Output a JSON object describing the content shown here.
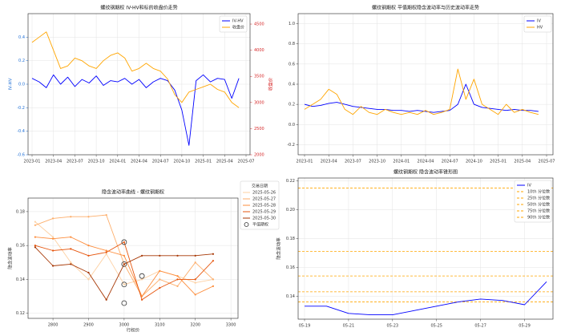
{
  "chart_data": [
    {
      "type": "line",
      "title": "螺纹钢期权 IV-HV和标的收盘价走势",
      "xlabel": "",
      "ylabel": "IV-HV",
      "y2label": "收盘价",
      "ylim": [
        -0.6,
        0.6
      ],
      "y2lim": [
        2000,
        4700
      ],
      "yticks": [
        "-0.6",
        "-0.4",
        "-0.2",
        "0.0",
        "0.2",
        "0.4"
      ],
      "y2ticks": [
        "2000",
        "2500",
        "3000",
        "3500",
        "4000",
        "4500"
      ],
      "xticks": [
        "2023-01",
        "2023-04",
        "2023-07",
        "2023-10",
        "2024-01",
        "2024-04",
        "2024-07",
        "2024-10",
        "2025-01",
        "2025-04",
        "2025-07"
      ],
      "grid": true,
      "legend": "top-right",
      "series": [
        {
          "name": "IV-HV",
          "axis": "left",
          "color": "#0000ff",
          "x": [
            "2023-01",
            "2023-02",
            "2023-03",
            "2023-04",
            "2023-05",
            "2023-06",
            "2023-07",
            "2023-08",
            "2023-09",
            "2023-10",
            "2023-11",
            "2023-12",
            "2024-01",
            "2024-02",
            "2024-03",
            "2024-04",
            "2024-05",
            "2024-06",
            "2024-07",
            "2024-08",
            "2024-09",
            "2024-10",
            "2024-11",
            "2024-12",
            "2025-01",
            "2025-02",
            "2025-03",
            "2025-04",
            "2025-05",
            "2025-06"
          ],
          "values": [
            0.05,
            0.02,
            -0.03,
            0.08,
            0.0,
            0.06,
            -0.02,
            0.04,
            0.01,
            0.07,
            -0.01,
            0.03,
            0.02,
            0.05,
            0.0,
            0.04,
            -0.03,
            0.02,
            0.05,
            0.03,
            -0.05,
            -0.22,
            -0.52,
            0.03,
            0.08,
            0.02,
            0.05,
            0.04,
            -0.12,
            0.05
          ]
        },
        {
          "name": "收盘价",
          "axis": "right",
          "color": "#ffa500",
          "x": [
            "2023-01",
            "2023-02",
            "2023-03",
            "2023-04",
            "2023-05",
            "2023-06",
            "2023-07",
            "2023-08",
            "2023-09",
            "2023-10",
            "2023-11",
            "2023-12",
            "2024-01",
            "2024-02",
            "2024-03",
            "2024-04",
            "2024-05",
            "2024-06",
            "2024-07",
            "2024-08",
            "2024-09",
            "2024-10",
            "2024-11",
            "2024-12",
            "2025-01",
            "2025-02",
            "2025-03",
            "2025-04",
            "2025-05",
            "2025-06"
          ],
          "values": [
            4150,
            4250,
            4350,
            4000,
            3650,
            3700,
            3850,
            3800,
            3700,
            3650,
            3800,
            3900,
            3950,
            3850,
            3600,
            3650,
            3750,
            3650,
            3600,
            3450,
            3150,
            3000,
            3200,
            3250,
            3300,
            3350,
            3250,
            3200,
            3000,
            2900
          ]
        }
      ]
    },
    {
      "type": "line",
      "title": "螺纹钢期权 平值期权隐含波动率与历史波动率走势",
      "xlabel": "",
      "ylabel": "",
      "ylim": [
        -0.3,
        1.1
      ],
      "yticks": [
        "-0.2",
        "0.0",
        "0.2",
        "0.4",
        "0.6",
        "0.8",
        "1.0"
      ],
      "xticks": [
        "2023-01",
        "2023-04",
        "2023-07",
        "2023-10",
        "2024-01",
        "2024-04",
        "2024-07",
        "2024-10",
        "2025-01",
        "2025-04",
        "2025-07"
      ],
      "grid": true,
      "legend": "top-right",
      "series": [
        {
          "name": "IV",
          "color": "#0000ff",
          "x": [
            "2023-01",
            "2023-02",
            "2023-03",
            "2023-04",
            "2023-05",
            "2023-06",
            "2023-07",
            "2023-08",
            "2023-09",
            "2023-10",
            "2023-11",
            "2023-12",
            "2024-01",
            "2024-02",
            "2024-03",
            "2024-04",
            "2024-05",
            "2024-06",
            "2024-07",
            "2024-08",
            "2024-09",
            "2024-10",
            "2024-11",
            "2024-12",
            "2025-01",
            "2025-02",
            "2025-03",
            "2025-04",
            "2025-05",
            "2025-06"
          ],
          "values": [
            0.2,
            0.18,
            0.19,
            0.21,
            0.22,
            0.2,
            0.18,
            0.17,
            0.16,
            0.15,
            0.15,
            0.14,
            0.14,
            0.13,
            0.14,
            0.13,
            0.12,
            0.13,
            0.14,
            0.2,
            0.4,
            0.2,
            0.17,
            0.16,
            0.15,
            0.14,
            0.15,
            0.14,
            0.14,
            0.13
          ]
        },
        {
          "name": "HV",
          "color": "#ffa500",
          "x": [
            "2023-01",
            "2023-02",
            "2023-03",
            "2023-04",
            "2023-05",
            "2023-06",
            "2023-07",
            "2023-08",
            "2023-09",
            "2023-10",
            "2023-11",
            "2023-12",
            "2024-01",
            "2024-02",
            "2024-03",
            "2024-04",
            "2024-05",
            "2024-06",
            "2024-07",
            "2024-08",
            "2024-09",
            "2024-10",
            "2024-11",
            "2024-12",
            "2025-01",
            "2025-02",
            "2025-03",
            "2025-04",
            "2025-05",
            "2025-06"
          ],
          "values": [
            0.15,
            0.2,
            0.25,
            0.35,
            0.3,
            0.15,
            0.1,
            0.18,
            0.12,
            0.1,
            0.15,
            0.12,
            0.1,
            0.12,
            0.1,
            0.14,
            0.1,
            0.12,
            0.15,
            0.55,
            0.25,
            0.45,
            0.2,
            0.15,
            0.1,
            0.2,
            0.12,
            0.15,
            0.12,
            0.1
          ]
        }
      ]
    },
    {
      "type": "line",
      "title": "隐含波动率曲线 - 螺纹钢期权",
      "xlabel": "行权价",
      "ylabel": "隐含波动率",
      "xlim": [
        2730,
        3320
      ],
      "ylim": [
        0.117,
        0.188
      ],
      "xticks": [
        "2800",
        "2900",
        "3000",
        "3100",
        "3200",
        "3300"
      ],
      "yticks": [
        "0.12",
        "0.14",
        "0.16",
        "0.18"
      ],
      "grid": true,
      "legend_title": "交易日期",
      "legend": "right-outside",
      "atm_label": "平值期权",
      "series": [
        {
          "name": "2025-05-26",
          "color": "#fdd0a2",
          "x": [
            2750,
            2800,
            2850,
            2900,
            2950,
            3000,
            3050,
            3100,
            3150,
            3200,
            3250
          ],
          "values": [
            0.174,
            0.165,
            0.15,
            0.14,
            0.155,
            0.137,
            0.14,
            0.145,
            0.142,
            0.138,
            0.14
          ]
        },
        {
          "name": "2025-05-27",
          "color": "#fdae6b",
          "x": [
            2750,
            2800,
            2850,
            2900,
            2950,
            3000,
            3050,
            3100,
            3150,
            3200,
            3250
          ],
          "values": [
            0.172,
            0.176,
            0.177,
            0.177,
            0.178,
            0.149,
            0.13,
            0.14,
            0.136,
            0.15,
            0.14
          ]
        },
        {
          "name": "2025-05-28",
          "color": "#fd8d3c",
          "x": [
            2750,
            2800,
            2850,
            2900,
            2950,
            3000,
            3050,
            3100,
            3150,
            3200,
            3250
          ],
          "values": [
            0.165,
            0.164,
            0.165,
            0.16,
            0.157,
            0.154,
            0.13,
            0.145,
            0.142,
            0.131,
            0.136
          ]
        },
        {
          "name": "2025-05-29",
          "color": "#e6550d",
          "x": [
            2750,
            2800,
            2850,
            2900,
            2950,
            3000,
            3050,
            3100,
            3150,
            3200,
            3250
          ],
          "values": [
            0.16,
            0.157,
            0.158,
            0.154,
            0.156,
            0.162,
            0.128,
            0.135,
            0.14,
            0.14,
            0.151
          ]
        },
        {
          "name": "2025-05-30",
          "color": "#a63603",
          "x": [
            2750,
            2800,
            2850,
            2900,
            2950,
            3000,
            3050,
            3100,
            3150,
            3200,
            3250
          ],
          "values": [
            0.159,
            0.148,
            0.149,
            0.144,
            0.128,
            0.149,
            0.154,
            0.154,
            0.154,
            0.154,
            0.155
          ]
        }
      ],
      "atm_points": [
        [
          3000,
          0.162
        ],
        [
          3000,
          0.149
        ],
        [
          3000,
          0.137
        ],
        [
          3000,
          0.126
        ],
        [
          3050,
          0.142
        ]
      ]
    },
    {
      "type": "line",
      "title": "螺纹钢期权 隐含波动率锥形图",
      "xlabel": "",
      "ylabel": "隐含波动率",
      "ylim": [
        0.124,
        0.222
      ],
      "yticks": [
        "0.14",
        "0.16",
        "0.18",
        "0.20",
        "0.22"
      ],
      "xticks": [
        "05-19",
        "05-21",
        "05-23",
        "05-25",
        "05-27",
        "05-29"
      ],
      "grid": true,
      "legend": "top-right",
      "series": [
        {
          "name": "IV",
          "color": "#0000ff",
          "x": [
            "05-19",
            "05-20",
            "05-21",
            "05-22",
            "05-23",
            "05-24",
            "05-25",
            "05-26",
            "05-27",
            "05-28",
            "05-29",
            "05-30"
          ],
          "values": [
            0.133,
            0.133,
            0.128,
            0.127,
            0.127,
            0.13,
            0.133,
            0.136,
            0.138,
            0.137,
            0.134,
            0.15
          ]
        }
      ],
      "percentiles": [
        {
          "name": "10th 分位数",
          "value": 0.136
        },
        {
          "name": "25th 分位数",
          "value": 0.143
        },
        {
          "name": "50th 分位数",
          "value": 0.154
        },
        {
          "name": "75th 分位数",
          "value": 0.171
        },
        {
          "name": "90th 分位数",
          "value": 0.215
        }
      ]
    }
  ]
}
